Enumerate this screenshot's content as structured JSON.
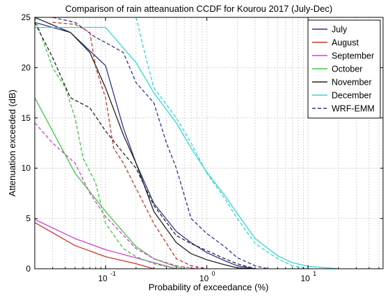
{
  "chart_data": {
    "type": "line",
    "title": "Comparison of rain atteanuation CCDF for Kourou 2017 (July-Dec)",
    "xlabel": "Probability of exceedance (%)",
    "ylabel": "Attenuation exceeded (dB)",
    "x_scale": "log",
    "xlim": [
      0.02,
      55
    ],
    "ylim": [
      0,
      25
    ],
    "grid": true,
    "legend_position": "top-right",
    "x_ticks": [
      {
        "value": 0.1,
        "base": "10",
        "exp": "-1"
      },
      {
        "value": 1,
        "base": "10",
        "exp": "0"
      },
      {
        "value": 10,
        "base": "10",
        "exp": "1"
      }
    ],
    "y_ticks": [
      0,
      5,
      10,
      15,
      20,
      25
    ],
    "series": [
      {
        "name": "July",
        "color": "#2e3192",
        "style": "solid",
        "x": [
          0.02,
          0.045,
          0.1,
          0.15,
          0.2,
          0.3,
          0.5,
          0.7,
          1,
          1.5,
          2,
          3
        ],
        "y": [
          24.5,
          23.5,
          20.2,
          14,
          10.5,
          6.5,
          3.7,
          2.6,
          1.6,
          0.8,
          0.3,
          0
        ]
      },
      {
        "name": "August",
        "color": "#c0392b",
        "style": "solid",
        "x": [
          0.02,
          0.05,
          0.1,
          0.2,
          0.3
        ],
        "y": [
          4.6,
          2.3,
          1.2,
          0.5,
          0
        ]
      },
      {
        "name": "September",
        "color": "#cc44cc",
        "style": "solid",
        "x": [
          0.02,
          0.05,
          0.1,
          0.3,
          0.5
        ],
        "y": [
          4.9,
          3.0,
          1.9,
          0.6,
          0
        ]
      },
      {
        "name": "October",
        "color": "#44c444",
        "style": "solid",
        "x": [
          0.02,
          0.05,
          0.1,
          0.2,
          0.3,
          0.5,
          0.6
        ],
        "y": [
          17,
          9.5,
          5.7,
          2.2,
          1.0,
          0.2,
          0
        ]
      },
      {
        "name": "November",
        "color": "#222222",
        "style": "solid",
        "x": [
          0.02,
          0.045,
          0.07,
          0.1,
          0.15,
          0.2,
          0.3,
          0.5,
          0.7,
          1,
          1.5,
          2,
          3
        ],
        "y": [
          25,
          23.5,
          21.5,
          18,
          13.3,
          10.5,
          5.7,
          2.6,
          1.5,
          0.9,
          0.4,
          0.1,
          0
        ]
      },
      {
        "name": "December",
        "color": "#33d6d6",
        "style": "solid",
        "x": [
          0.02,
          0.1,
          0.2,
          0.3,
          0.5,
          0.7,
          1,
          1.5,
          2,
          3,
          5,
          7,
          10,
          20
        ],
        "y": [
          24,
          24,
          20.5,
          17.5,
          14.5,
          12,
          9.6,
          7.3,
          5.5,
          3,
          1.3,
          0.6,
          0.25,
          0
        ]
      },
      {
        "name": "WRF-EMM",
        "color": "#2e3192",
        "style": "dashed",
        "x": [
          0.03,
          0.05,
          0.08,
          0.1,
          0.15,
          0.2,
          0.3,
          0.4,
          0.5,
          0.7,
          1,
          1.5,
          2,
          3,
          4
        ],
        "y": [
          25,
          24.5,
          23,
          22.5,
          21.5,
          18.5,
          16.5,
          12.5,
          10,
          5,
          3.5,
          2.2,
          1.1,
          0.3,
          0
        ]
      },
      {
        "name": "",
        "color": "#c0392b",
        "style": "dashed",
        "x": [
          0.03,
          0.05,
          0.07,
          0.08,
          0.1,
          0.12,
          0.15,
          0.2,
          0.3,
          0.5,
          0.7,
          1
        ],
        "y": [
          24.5,
          24.3,
          23.5,
          20,
          17,
          12,
          10.5,
          8,
          4.5,
          1.0,
          0.3,
          0
        ]
      },
      {
        "name": "",
        "color": "#cc44cc",
        "style": "dashed",
        "x": [
          0.02,
          0.03,
          0.05,
          0.07,
          0.1,
          0.2,
          0.3,
          0.5,
          0.8
        ],
        "y": [
          14.5,
          12.5,
          10.5,
          7.5,
          5.2,
          2.0,
          1.0,
          0.3,
          0
        ]
      },
      {
        "name": "",
        "color": "#44c444",
        "style": "dashed",
        "x": [
          0.02,
          0.03,
          0.04,
          0.05,
          0.06,
          0.08,
          0.1,
          0.15,
          0.2,
          0.3,
          0.5
        ],
        "y": [
          25,
          20,
          18,
          15,
          11,
          8.5,
          4.5,
          2.0,
          1.2,
          0.5,
          0
        ]
      },
      {
        "name": "",
        "color": "#222222",
        "style": "dashed",
        "x": [
          0.02,
          0.03,
          0.045,
          0.07,
          0.1,
          0.15,
          0.2,
          0.3,
          0.5,
          0.7,
          1,
          1.5,
          2,
          3
        ],
        "y": [
          24.5,
          21,
          17,
          16,
          13.7,
          11.5,
          10,
          6.3,
          3.3,
          2.5,
          1.8,
          1.0,
          0.5,
          0
        ]
      },
      {
        "name": "",
        "color": "#33d6d6",
        "style": "dashed",
        "x": [
          0.2,
          0.25,
          0.3,
          0.5,
          0.7,
          1,
          1.5,
          2,
          3,
          5,
          7,
          10
        ],
        "y": [
          25,
          21,
          18,
          15,
          12.5,
          9.5,
          7,
          5,
          2.5,
          1,
          0.3,
          0
        ]
      }
    ]
  }
}
